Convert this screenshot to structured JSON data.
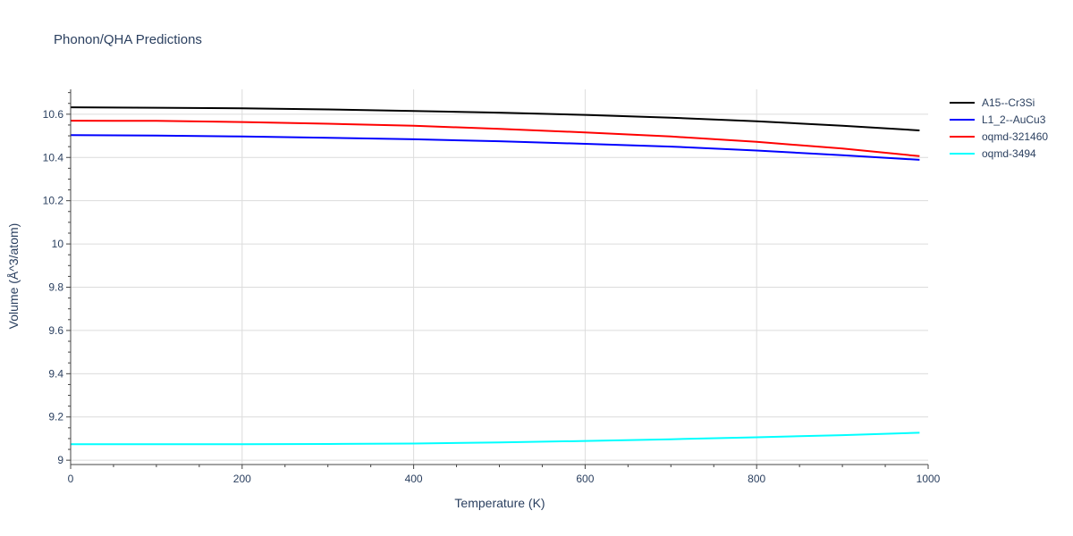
{
  "chart_data": {
    "type": "line",
    "title": "Phonon/QHA Predictions",
    "xlabel": "Temperature (K)",
    "ylabel": "Volume (Å^3/atom)",
    "xlim": [
      0,
      1000
    ],
    "ylim": [
      8.98,
      10.715
    ],
    "xticks": [
      0,
      200,
      400,
      600,
      800,
      1000
    ],
    "yticks": [
      9,
      9.2,
      9.4,
      9.6,
      9.8,
      10,
      10.2,
      10.4,
      10.6
    ],
    "grid": true,
    "legend_position": "top-right",
    "series": [
      {
        "name": "A15--Cr3Si",
        "color": "#000000",
        "x": [
          0,
          100,
          200,
          300,
          400,
          500,
          600,
          700,
          800,
          900,
          990
        ],
        "y": [
          10.632,
          10.63,
          10.627,
          10.622,
          10.615,
          10.607,
          10.597,
          10.584,
          10.567,
          10.547,
          10.525
        ]
      },
      {
        "name": "L1_2--AuCu3",
        "color": "#0000ff",
        "x": [
          0,
          100,
          200,
          300,
          400,
          500,
          600,
          700,
          800,
          900,
          990
        ],
        "y": [
          10.503,
          10.501,
          10.497,
          10.491,
          10.484,
          10.475,
          10.463,
          10.45,
          10.432,
          10.41,
          10.389
        ]
      },
      {
        "name": "oqmd-321460",
        "color": "#ff0000",
        "x": [
          0,
          100,
          200,
          300,
          400,
          500,
          600,
          700,
          800,
          900,
          990
        ],
        "y": [
          10.57,
          10.569,
          10.564,
          10.556,
          10.547,
          10.532,
          10.516,
          10.497,
          10.472,
          10.441,
          10.406
        ]
      },
      {
        "name": "oqmd-3494",
        "color": "#00ffff",
        "x": [
          0,
          100,
          200,
          300,
          400,
          500,
          600,
          700,
          800,
          900,
          990
        ],
        "y": [
          9.074,
          9.074,
          9.074,
          9.075,
          9.077,
          9.082,
          9.089,
          9.097,
          9.106,
          9.116,
          9.127
        ]
      }
    ]
  }
}
